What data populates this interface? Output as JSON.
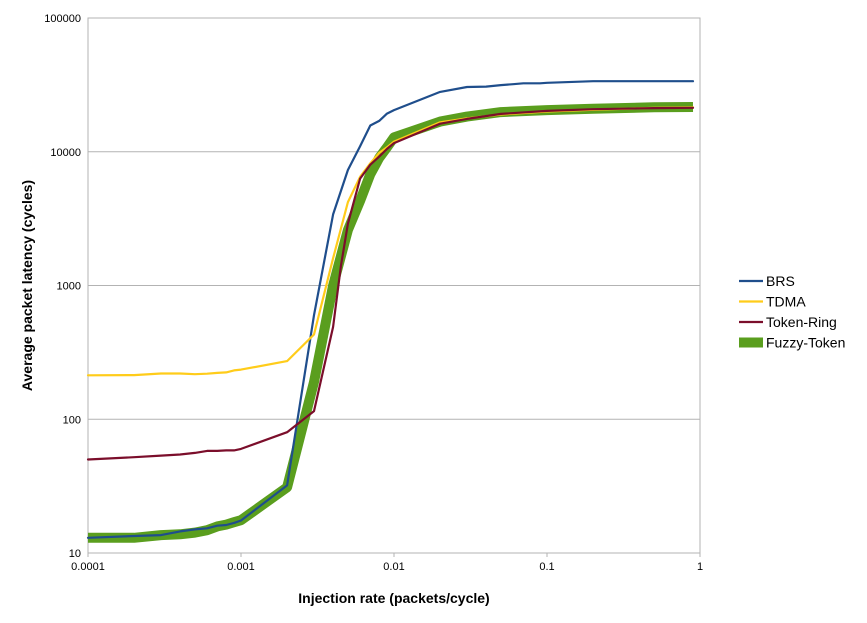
{
  "chart_data": {
    "type": "line",
    "title": "",
    "xlabel": "Injection rate (packets/cycle)",
    "ylabel": "Average packet latency (cycles)",
    "xscale": "log",
    "yscale": "log",
    "xlim": [
      0.0001,
      1
    ],
    "ylim": [
      10,
      100000
    ],
    "x_ticks": [
      {
        "value": 0.0001,
        "label": "0.0001"
      },
      {
        "value": 0.001,
        "label": "0.001"
      },
      {
        "value": 0.01,
        "label": "0.01"
      },
      {
        "value": 0.1,
        "label": "0.1"
      },
      {
        "value": 1,
        "label": "1"
      }
    ],
    "y_ticks": [
      {
        "value": 10,
        "label": "10"
      },
      {
        "value": 100,
        "label": "100"
      },
      {
        "value": 1000,
        "label": "1000"
      },
      {
        "value": 10000,
        "label": "10000"
      },
      {
        "value": 100000,
        "label": "100000"
      }
    ],
    "grid": "horizontal major",
    "legend_position": "right",
    "series": [
      {
        "name": "BRS",
        "color": "#1f4e8c",
        "width": "thin",
        "x": [
          0.0001,
          0.0002,
          0.0003,
          0.0004,
          0.0005,
          0.0006,
          0.0007,
          0.0008,
          0.0009,
          0.001,
          0.002,
          0.003,
          0.004,
          0.005,
          0.006,
          0.007,
          0.008,
          0.009,
          0.01,
          0.02,
          0.03,
          0.04,
          0.05,
          0.06,
          0.07,
          0.08,
          0.09,
          0.1,
          0.2,
          0.3,
          0.5,
          0.9
        ],
        "y": [
          13,
          13.4,
          13.6,
          14.5,
          15,
          15.3,
          16,
          16.2,
          16.8,
          17.5,
          32,
          600,
          3400,
          7300,
          11000,
          15700,
          17000,
          19300,
          20500,
          28000,
          30500,
          30700,
          31500,
          32000,
          32500,
          32500,
          32500,
          32800,
          33700,
          33700,
          33700,
          33700
        ]
      },
      {
        "name": "TDMA",
        "color": "#ffcc1a",
        "width": "thin",
        "x": [
          0.0001,
          0.0002,
          0.0003,
          0.0004,
          0.0005,
          0.0006,
          0.0007,
          0.0008,
          0.0009,
          0.001,
          0.002,
          0.003,
          0.004,
          0.005,
          0.006,
          0.007,
          0.008,
          0.009,
          0.01,
          0.02,
          0.03,
          0.05,
          0.1,
          0.2,
          0.5,
          0.9
        ],
        "y": [
          213,
          214,
          220,
          220,
          217,
          219,
          222,
          224,
          232,
          235,
          272,
          430,
          1600,
          4200,
          6500,
          8200,
          9800,
          10800,
          11900,
          16600,
          17800,
          19000,
          20000,
          20600,
          21300,
          21500
        ]
      },
      {
        "name": "Token-Ring",
        "color": "#7b0e2b",
        "width": "thin",
        "x": [
          0.0001,
          0.0002,
          0.0003,
          0.0004,
          0.0005,
          0.0006,
          0.0007,
          0.0008,
          0.0009,
          0.001,
          0.002,
          0.003,
          0.004,
          0.0045,
          0.005,
          0.006,
          0.007,
          0.008,
          0.009,
          0.01,
          0.02,
          0.03,
          0.05,
          0.1,
          0.2,
          0.5,
          0.9
        ],
        "y": [
          50,
          52,
          53.5,
          54.5,
          56,
          58,
          58,
          58.5,
          58.5,
          60,
          80,
          115,
          490,
          1400,
          2900,
          6300,
          8000,
          9200,
          10500,
          11600,
          16200,
          17600,
          19200,
          20200,
          20800,
          21200,
          21300
        ]
      },
      {
        "name": "Fuzzy-Token",
        "color": "#5a9e1e",
        "width": "thick",
        "x": [
          0.0001,
          0.0002,
          0.0003,
          0.0004,
          0.0005,
          0.0006,
          0.0007,
          0.0008,
          0.0009,
          0.001,
          0.002,
          0.003,
          0.004,
          0.005,
          0.006,
          0.007,
          0.008,
          0.009,
          0.01,
          0.02,
          0.03,
          0.05,
          0.1,
          0.2,
          0.5,
          0.9
        ],
        "y": [
          13,
          13,
          13.6,
          13.8,
          14.2,
          14.8,
          15.8,
          16.3,
          17,
          17.6,
          31,
          190,
          1000,
          2600,
          4300,
          6800,
          9000,
          10800,
          12800,
          16800,
          18300,
          19800,
          20500,
          21000,
          21500,
          21600
        ]
      }
    ]
  }
}
